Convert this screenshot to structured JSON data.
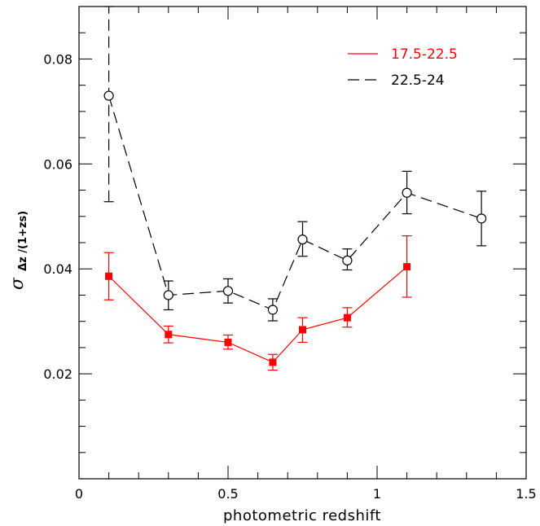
{
  "chart_data": {
    "type": "line",
    "title": "",
    "xlabel": "photometric redshift",
    "ylabel": {
      "main": "σ",
      "sub": "Δz /(1+zs)"
    },
    "xlim": [
      0,
      1.5
    ],
    "ylim": [
      0,
      0.09
    ],
    "x_ticks": [
      {
        "value": 0,
        "label": "0"
      },
      {
        "value": 0.5,
        "label": "0.5"
      },
      {
        "value": 1,
        "label": "1"
      },
      {
        "value": 1.5,
        "label": "1.5"
      }
    ],
    "y_ticks": [
      {
        "value": 0.02,
        "label": "0.02"
      },
      {
        "value": 0.04,
        "label": "0.04"
      },
      {
        "value": 0.06,
        "label": "0.06"
      },
      {
        "value": 0.08,
        "label": "0.08"
      }
    ],
    "grid": false,
    "legend_position": "top-right",
    "series": [
      {
        "name": "17.5-22.5",
        "color": "#ff0000",
        "line_style": "solid",
        "marker": "filled-square",
        "points": [
          {
            "x": 0.1,
            "y": 0.0386,
            "lo": 0.0341,
            "hi": 0.0431
          },
          {
            "x": 0.3,
            "y": 0.0275,
            "lo": 0.0259,
            "hi": 0.0291
          },
          {
            "x": 0.5,
            "y": 0.026,
            "lo": 0.0247,
            "hi": 0.0274
          },
          {
            "x": 0.65,
            "y": 0.0222,
            "lo": 0.0207,
            "hi": 0.0237
          },
          {
            "x": 0.75,
            "y": 0.0284,
            "lo": 0.026,
            "hi": 0.0307
          },
          {
            "x": 0.9,
            "y": 0.0307,
            "lo": 0.0289,
            "hi": 0.0326
          },
          {
            "x": 1.1,
            "y": 0.0404,
            "lo": 0.0346,
            "hi": 0.0463
          }
        ]
      },
      {
        "name": "22.5-24",
        "color": "#000000",
        "line_style": "dashed",
        "marker": "open-circle",
        "points": [
          {
            "x": 0.1,
            "y": 0.073,
            "lo": 0.0528,
            "hi": 0.09
          },
          {
            "x": 0.3,
            "y": 0.035,
            "lo": 0.0322,
            "hi": 0.0377
          },
          {
            "x": 0.5,
            "y": 0.0358,
            "lo": 0.0335,
            "hi": 0.0381
          },
          {
            "x": 0.65,
            "y": 0.0322,
            "lo": 0.0301,
            "hi": 0.0343
          },
          {
            "x": 0.75,
            "y": 0.0456,
            "lo": 0.0424,
            "hi": 0.049
          },
          {
            "x": 0.9,
            "y": 0.0416,
            "lo": 0.0398,
            "hi": 0.0438
          },
          {
            "x": 1.1,
            "y": 0.0545,
            "lo": 0.0505,
            "hi": 0.0586
          },
          {
            "x": 1.35,
            "y": 0.0496,
            "lo": 0.0444,
            "hi": 0.0548
          }
        ]
      }
    ]
  }
}
